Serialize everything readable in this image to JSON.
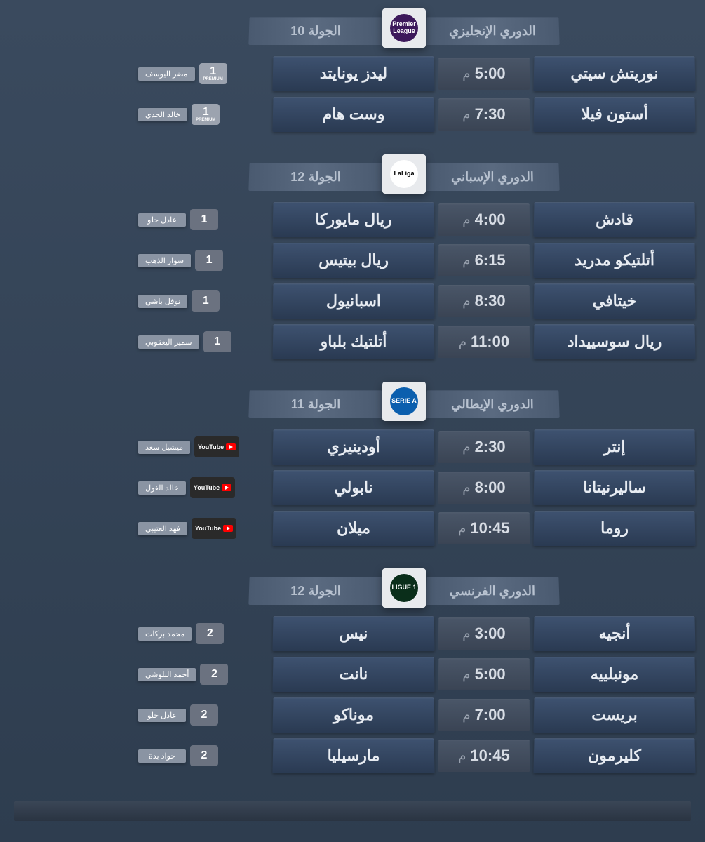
{
  "ampm": "م",
  "leagues": [
    {
      "name": "الدوري الإنجليزي",
      "round": "الجولة 10",
      "logo_bg": "#3d195b",
      "logo_text": "Premier League",
      "matches": [
        {
          "home": "نوريتش سيتي",
          "away": "ليدز يونايتد",
          "time": "5:00",
          "channel_type": "premium",
          "channel_label": "1",
          "commentator": "مضر اليوسف"
        },
        {
          "home": "أستون فيلا",
          "away": "وست هام",
          "time": "7:30",
          "channel_type": "premium",
          "channel_label": "1",
          "commentator": "خالد الحدي"
        }
      ]
    },
    {
      "name": "الدوري الإسباني",
      "round": "الجولة 12",
      "logo_bg": "#ffffff",
      "logo_text": "LaLiga",
      "logo_text_color": "#000000",
      "matches": [
        {
          "home": "قادش",
          "away": "ريال مايوركا",
          "time": "4:00",
          "channel_type": "num",
          "channel_label": "1",
          "commentator": "عادل خلو"
        },
        {
          "home": "أتلتيكو مدريد",
          "away": "ريال بيتيس",
          "time": "6:15",
          "channel_type": "num",
          "channel_label": "1",
          "commentator": "سوار الذهب"
        },
        {
          "home": "خيتافي",
          "away": "اسبانيول",
          "time": "8:30",
          "channel_type": "num",
          "channel_label": "1",
          "commentator": "نوفل باشي"
        },
        {
          "home": "ريال سوسييداد",
          "away": "أتلتيك بلباو",
          "time": "11:00",
          "channel_type": "num",
          "channel_label": "1",
          "commentator": "سمير اليعقوبي"
        }
      ]
    },
    {
      "name": "الدوري الإيطالي",
      "round": "الجولة 11",
      "logo_bg": "#0b5fae",
      "logo_text": "SERIE A",
      "matches": [
        {
          "home": "إنتر",
          "away": "أودينيزي",
          "time": "2:30",
          "channel_type": "youtube",
          "channel_label": "YouTube",
          "commentator": "ميشيل سعد"
        },
        {
          "home": "ساليرنيتانا",
          "away": "نابولي",
          "time": "8:00",
          "channel_type": "youtube",
          "channel_label": "YouTube",
          "commentator": "خالد الغول"
        },
        {
          "home": "روما",
          "away": "ميلان",
          "time": "10:45",
          "channel_type": "youtube",
          "channel_label": "YouTube",
          "commentator": "فهد العتيبي"
        }
      ]
    },
    {
      "name": "الدوري الفرنسي",
      "round": "الجولة 12",
      "logo_bg": "#0a2e1a",
      "logo_text": "LIGUE 1",
      "matches": [
        {
          "home": "أنجيه",
          "away": "نيس",
          "time": "3:00",
          "channel_type": "num",
          "channel_label": "2",
          "commentator": "محمد بركات"
        },
        {
          "home": "مونبلييه",
          "away": "نانت",
          "time": "5:00",
          "channel_type": "num",
          "channel_label": "2",
          "commentator": "أحمد البلوشي"
        },
        {
          "home": "بريست",
          "away": "موناكو",
          "time": "7:00",
          "channel_type": "num",
          "channel_label": "2",
          "commentator": "عادل خلو"
        },
        {
          "home": "كليرمون",
          "away": "مارسيليا",
          "time": "10:45",
          "channel_type": "num",
          "channel_label": "2",
          "commentator": "جواد بدة"
        }
      ]
    }
  ],
  "colors": {
    "bg_top": "#3a4a5e",
    "bg_bottom": "#2e3d4f",
    "team_cell_top": "#3e5270",
    "team_cell_bottom": "#2a3a52",
    "time_cell_top": "#4a5668",
    "time_cell_bottom": "#3a4454",
    "header_cell": "#4a5a70",
    "text_primary": "#e8ecf2",
    "text_muted": "#b8c2d0"
  }
}
